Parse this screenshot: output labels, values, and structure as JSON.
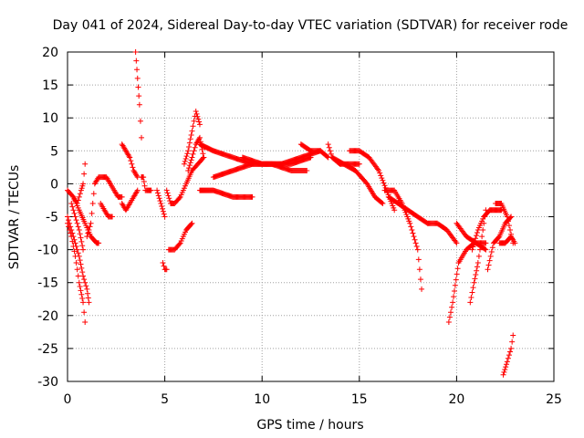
{
  "colors": {
    "series": "#ff0000",
    "grid": "#a0a0a0",
    "axis": "#000000",
    "background": "#ffffff"
  },
  "chart_data": {
    "type": "scatter",
    "title": "Day 041 of 2024, Sidereal Day-to-day VTEC variation (SDTVAR) for receiver rode",
    "xlabel": "GPS time / hours",
    "ylabel": "SDTVAR / TECUs",
    "xlim": [
      0,
      25
    ],
    "ylim": [
      -30,
      20
    ],
    "xticks": [
      0,
      5,
      10,
      15,
      20,
      25
    ],
    "yticks": [
      -30,
      -25,
      -20,
      -15,
      -10,
      -5,
      0,
      5,
      10,
      15,
      20
    ],
    "grid": true,
    "marker": "+",
    "series": [
      {
        "name": "t01",
        "x": [
          0.0,
          0.3,
          0.6,
          0.9,
          1.2,
          1.5,
          1.6
        ],
        "y": [
          -1,
          -2,
          -4,
          -6,
          -8,
          -9,
          -9
        ]
      },
      {
        "name": "t02",
        "x": [
          0.0,
          0.2,
          0.4,
          0.6,
          0.8,
          0.9
        ],
        "y": [
          -6,
          -8,
          -11,
          -15,
          -18,
          -21
        ]
      },
      {
        "name": "t03",
        "x": [
          0.0,
          0.2,
          0.4,
          0.6,
          0.8,
          1.0,
          1.1
        ],
        "y": [
          -5,
          -7,
          -9,
          -11,
          -14,
          -16,
          -18
        ]
      },
      {
        "name": "t04",
        "x": [
          0.2,
          0.4,
          0.6,
          0.8
        ],
        "y": [
          -3,
          -5,
          -7,
          -10
        ]
      },
      {
        "name": "t05",
        "x": [
          0.3,
          0.5,
          0.7,
          0.8,
          0.9
        ],
        "y": [
          -2,
          -3,
          -1,
          0,
          3
        ]
      },
      {
        "name": "t06",
        "x": [
          1.0,
          1.2,
          1.4,
          1.6,
          1.8,
          2.0,
          2.2,
          2.4,
          2.6,
          2.8
        ],
        "y": [
          -8,
          -6,
          0,
          1,
          1,
          1,
          0,
          -1,
          -2,
          -2
        ]
      },
      {
        "name": "t07",
        "x": [
          1.7,
          1.9,
          2.1,
          2.3
        ],
        "y": [
          -3,
          -4,
          -5,
          -5
        ]
      },
      {
        "name": "t08",
        "x": [
          2.8,
          3.0,
          3.2,
          3.4,
          3.6
        ],
        "y": [
          -3,
          -4,
          -3,
          -2,
          -1
        ]
      },
      {
        "name": "t09",
        "x": [
          2.8,
          3.0,
          3.2,
          3.4,
          3.6
        ],
        "y": [
          6,
          5,
          4,
          2,
          1
        ]
      },
      {
        "name": "t10",
        "x": [
          3.5,
          3.6,
          3.7,
          3.8
        ],
        "y": [
          20,
          16,
          12,
          7
        ]
      },
      {
        "name": "t11",
        "x": [
          3.8,
          3.9,
          4.0,
          4.1,
          4.3
        ],
        "y": [
          1,
          1,
          -1,
          -1,
          -1
        ]
      },
      {
        "name": "t12",
        "x": [
          4.6,
          4.8,
          5.0
        ],
        "y": [
          -1,
          -3,
          -5
        ]
      },
      {
        "name": "t13",
        "x": [
          4.9,
          5.0,
          5.1
        ],
        "y": [
          -12,
          -13,
          -13
        ]
      },
      {
        "name": "t14",
        "x": [
          5.2,
          5.5,
          5.8,
          6.1,
          6.4
        ],
        "y": [
          -10,
          -10,
          -9,
          -7,
          -6
        ]
      },
      {
        "name": "t15",
        "x": [
          5.1,
          5.3,
          5.5,
          5.8,
          6.1,
          6.4,
          6.7,
          7.0
        ],
        "y": [
          -1,
          -3,
          -3,
          -2,
          0,
          2,
          3,
          4
        ]
      },
      {
        "name": "t16",
        "x": [
          6.0,
          6.2,
          6.4,
          6.6,
          6.8
        ],
        "y": [
          3,
          5,
          8,
          11,
          9
        ]
      },
      {
        "name": "t17",
        "x": [
          6.2,
          6.4,
          6.6,
          6.8,
          7.0
        ],
        "y": [
          2,
          4,
          6,
          7,
          4
        ]
      },
      {
        "name": "t18",
        "x": [
          6.8,
          7.5,
          8.5,
          9.5,
          10.5,
          11.5,
          12.3
        ],
        "y": [
          6,
          5,
          4,
          3,
          3,
          2,
          2
        ]
      },
      {
        "name": "t19",
        "x": [
          6.8,
          7.5,
          8.5,
          9.0,
          9.5
        ],
        "y": [
          -1,
          -1,
          -2,
          -2,
          -2
        ]
      },
      {
        "name": "t20",
        "x": [
          7.5,
          8.5,
          9.5,
          10.5,
          11.5,
          12.5
        ],
        "y": [
          1,
          2,
          3,
          3,
          3,
          4
        ]
      },
      {
        "name": "t21",
        "x": [
          9.0,
          10.0,
          11.0,
          12.0,
          13.0
        ],
        "y": [
          4,
          3,
          3,
          4,
          5
        ]
      },
      {
        "name": "t22",
        "x": [
          12.0,
          12.5,
          13.0,
          13.4
        ],
        "y": [
          6,
          5,
          5,
          4
        ]
      },
      {
        "name": "t23",
        "x": [
          13.4,
          13.6,
          14.0,
          14.5,
          15.0
        ],
        "y": [
          6,
          4,
          3,
          3,
          3
        ]
      },
      {
        "name": "t24",
        "x": [
          13.6,
          14.2,
          14.8,
          15.4,
          15.8,
          16.2
        ],
        "y": [
          4,
          3,
          2,
          0,
          -2,
          -3
        ]
      },
      {
        "name": "t25",
        "x": [
          14.5,
          15.0,
          15.5,
          16.0,
          16.4,
          16.8
        ],
        "y": [
          5,
          5,
          4,
          2,
          -1,
          -4
        ]
      },
      {
        "name": "t26",
        "x": [
          16.3,
          16.8,
          17.2,
          17.6,
          18.0,
          18.2
        ],
        "y": [
          -1,
          -1,
          -3,
          -6,
          -10,
          -16
        ]
      },
      {
        "name": "t27",
        "x": [
          16.5,
          17.0,
          17.5,
          18.0,
          18.5,
          19.0,
          19.5,
          20.0
        ],
        "y": [
          -2,
          -3,
          -4,
          -5,
          -6,
          -6,
          -7,
          -9
        ]
      },
      {
        "name": "t28",
        "x": [
          19.6,
          19.8,
          20.1,
          20.5,
          20.9,
          21.3,
          21.5
        ],
        "y": [
          -21,
          -18,
          -12,
          -10,
          -9,
          -9,
          -9
        ]
      },
      {
        "name": "t29",
        "x": [
          20.0,
          20.5,
          21.0,
          21.5
        ],
        "y": [
          -6,
          -8,
          -9,
          -10
        ]
      },
      {
        "name": "t30",
        "x": [
          20.7,
          20.9,
          21.1,
          21.3,
          21.5
        ],
        "y": [
          -18,
          -15,
          -12,
          -8,
          -4
        ]
      },
      {
        "name": "t31",
        "x": [
          20.8,
          21.1,
          21.4,
          21.7,
          22.0,
          22.3
        ],
        "y": [
          -10,
          -7,
          -5,
          -4,
          -4,
          -4
        ]
      },
      {
        "name": "t32",
        "x": [
          21.6,
          21.9,
          22.2,
          22.5,
          22.8
        ],
        "y": [
          -13,
          -9,
          -8,
          -6,
          -5
        ]
      },
      {
        "name": "t33",
        "x": [
          22.0,
          22.3,
          22.6,
          22.9
        ],
        "y": [
          -3,
          -3,
          -5,
          -9
        ]
      },
      {
        "name": "t34",
        "x": [
          22.2,
          22.5,
          22.8,
          23.0
        ],
        "y": [
          -9,
          -9,
          -8,
          -9
        ]
      },
      {
        "name": "t35",
        "x": [
          22.4,
          22.6,
          22.8,
          22.9
        ],
        "y": [
          -29,
          -27,
          -25,
          -23
        ]
      }
    ]
  }
}
